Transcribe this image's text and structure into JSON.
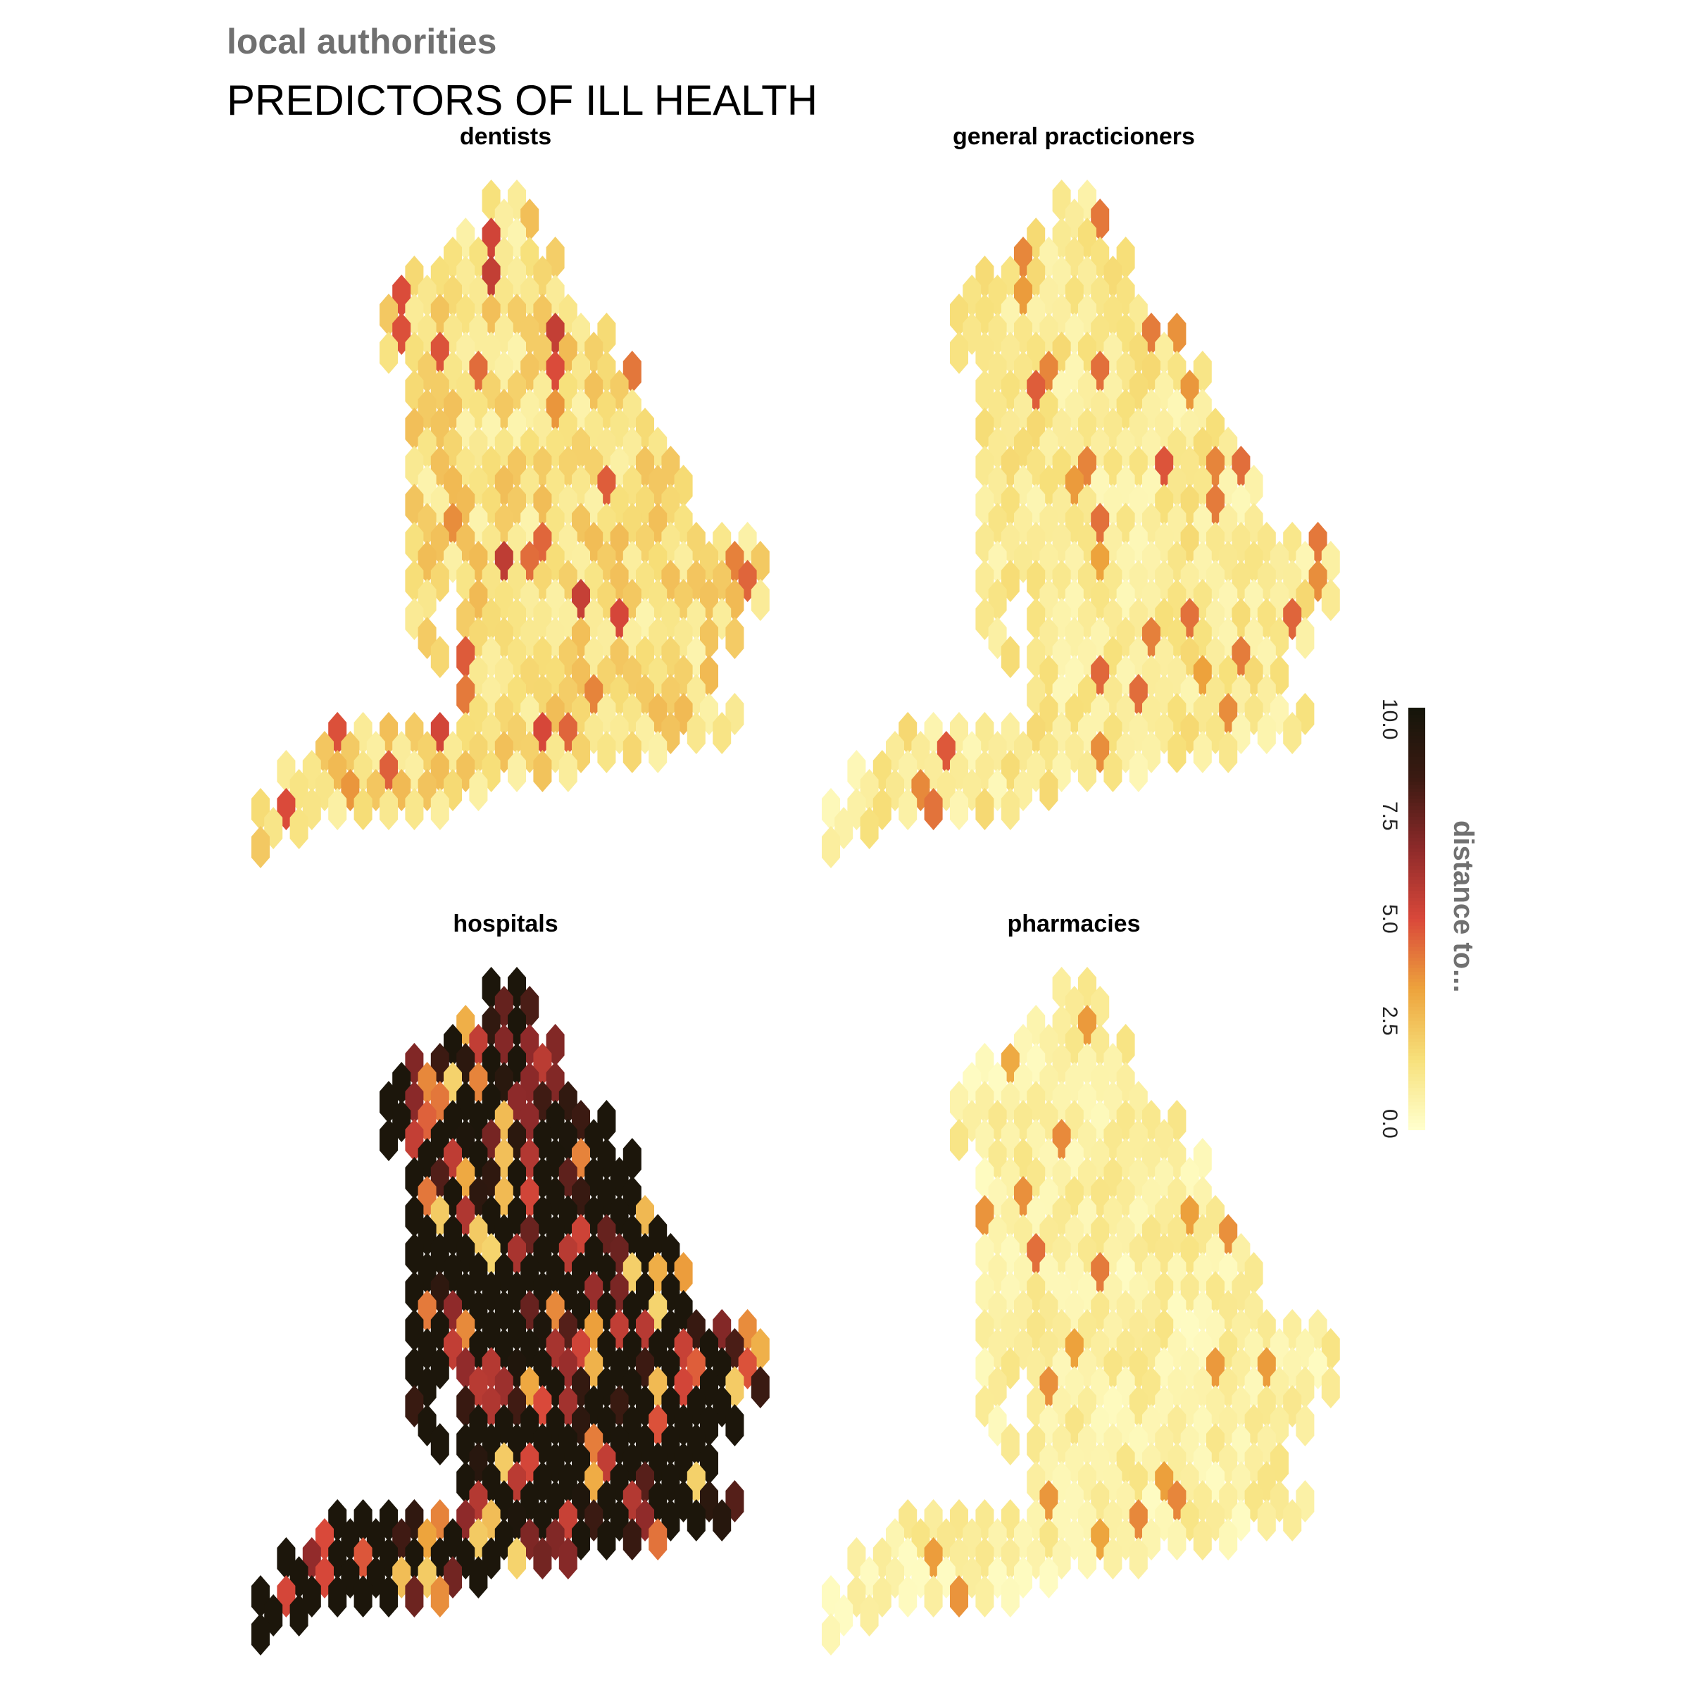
{
  "header": {
    "subtitle": "local authorities",
    "title": "PREDICTORS OF ILL HEALTH"
  },
  "panels": [
    {
      "id": "dentists",
      "label": "dentists",
      "palette_shift": 0.6,
      "variance": 1.0
    },
    {
      "id": "gp",
      "label": "general practicioners",
      "palette_shift": 0.4,
      "variance": 0.7
    },
    {
      "id": "hospitals",
      "label": "hospitals",
      "palette_shift": 7.5,
      "variance": 3.5
    },
    {
      "id": "pharmacies",
      "label": "pharmacies",
      "palette_shift": 0.2,
      "variance": 0.6
    }
  ],
  "legend": {
    "title": "distance to...",
    "ticks": [
      "0.0",
      "2.5",
      "5.0",
      "7.5",
      "10.0"
    ],
    "tick_values": [
      0,
      2.5,
      5,
      7.5,
      10
    ],
    "range": [
      0,
      10.3
    ],
    "colors": [
      "#ffffcc",
      "#f7e07a",
      "#eda33c",
      "#d9483a",
      "#8e2a2a",
      "#3c1a12",
      "#15150a"
    ]
  }
}
